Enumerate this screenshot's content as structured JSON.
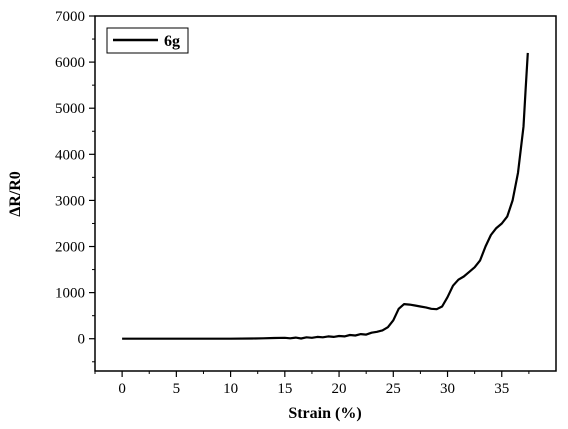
{
  "chart_data": {
    "type": "line",
    "xlabel": "Strain (%)",
    "ylabel": "ΔR/R0",
    "xlim": [
      -2.5,
      40
    ],
    "ylim": [
      -700,
      7000
    ],
    "xticks": [
      "0",
      "5",
      "10",
      "15",
      "20",
      "25",
      "30",
      "35"
    ],
    "yticks": [
      "0",
      "1000",
      "2000",
      "3000",
      "4000",
      "5000",
      "6000",
      "7000"
    ],
    "grid": false,
    "legend_position": "top-left",
    "series": [
      {
        "name": "6g",
        "color": "#000000",
        "x": [
          0,
          2,
          4,
          6,
          8,
          10,
          12,
          13,
          14,
          15,
          15.5,
          16,
          16.5,
          17,
          17.5,
          18,
          18.5,
          19,
          19.5,
          20,
          20.5,
          21,
          21.5,
          22,
          22.5,
          23,
          23.5,
          24,
          24.5,
          25,
          25.5,
          26,
          26.5,
          27,
          27.5,
          28,
          28.5,
          29,
          29.5,
          30,
          30.5,
          31,
          31.5,
          32,
          32.5,
          33,
          33.5,
          34,
          34.5,
          35,
          35.5,
          36,
          36.5,
          37,
          37.2,
          37.4
        ],
        "y": [
          0,
          0,
          0,
          0,
          0,
          0,
          5,
          10,
          15,
          20,
          10,
          25,
          5,
          30,
          20,
          40,
          30,
          50,
          40,
          60,
          50,
          80,
          70,
          100,
          90,
          130,
          150,
          180,
          250,
          400,
          650,
          750,
          740,
          720,
          700,
          680,
          650,
          640,
          700,
          900,
          1150,
          1280,
          1350,
          1450,
          1550,
          1700,
          2000,
          2250,
          2400,
          2500,
          2650,
          3000,
          3600,
          4600,
          5400,
          6200
        ]
      }
    ]
  }
}
